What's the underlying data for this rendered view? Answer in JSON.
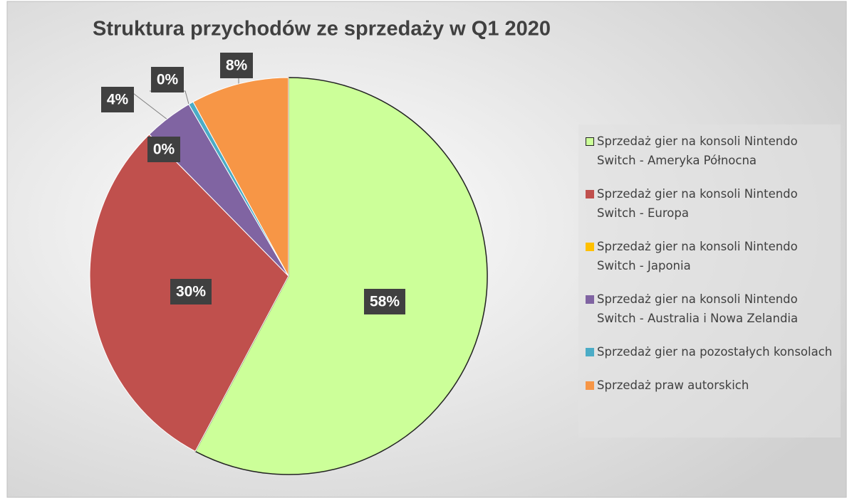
{
  "chart_data": {
    "type": "pie",
    "title": "Struktura przychodów ze sprzedaży w Q1 2020",
    "categories": [
      "Sprzedaż gier na konsoli Nintendo Switch - Ameryka Północna",
      "Sprzedaż gier na konsoli Nintendo Switch - Europa",
      "Sprzedaż gier na konsoli Nintendo Switch - Japonia",
      "Sprzedaż gier na konsoli Nintendo Switch - Australia i Nowa Zelandia",
      "Sprzedaż gier na pozostałych konsolach",
      "Sprzedaż praw autorskich"
    ],
    "values": [
      58,
      30,
      0,
      4,
      0.4,
      8
    ],
    "value_labels": [
      "58%",
      "30%",
      "0%",
      "4%",
      "0%",
      "8%"
    ],
    "colors": [
      "#ccff99",
      "#c0504d",
      "#ffc000",
      "#8064a2",
      "#4bacc6",
      "#f79646"
    ],
    "legend": "right"
  }
}
